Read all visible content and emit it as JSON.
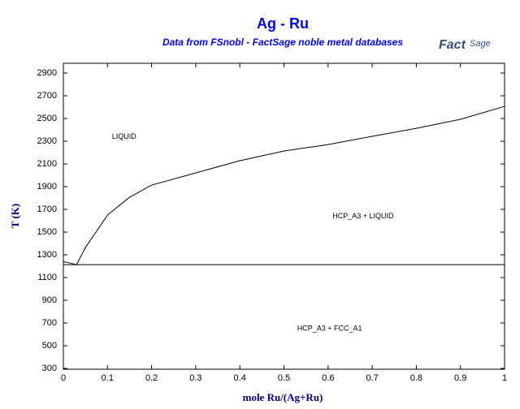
{
  "chart_data": {
    "type": "line",
    "title": "Ag - Ru",
    "subtitle": "Data from FSnobl - FactSage noble metal databases",
    "logo": [
      "Fact",
      "Sage"
    ],
    "x_label": "mole Ru/(Ag+Ru)",
    "y_label": "T (K)",
    "xlim": [
      0,
      1
    ],
    "ylim": [
      293,
      2986
    ],
    "xticks": [
      0,
      0.1,
      0.2,
      0.3,
      0.4,
      0.5,
      0.6,
      0.7,
      0.8,
      0.9,
      1
    ],
    "yticks": [
      300,
      500,
      700,
      900,
      1100,
      1300,
      1500,
      1700,
      1900,
      2100,
      2300,
      2500,
      2700,
      2900
    ],
    "series": [
      {
        "color": "#000000",
        "x": [
          0,
          0.03
        ],
        "values": [
          1240,
          1214
        ]
      },
      {
        "color": "#000000",
        "x": [
          0.03,
          0.05,
          0.1,
          0.15,
          0.2,
          0.3,
          0.4,
          0.5,
          0.6,
          0.7,
          0.8,
          0.9,
          1
        ],
        "values": [
          1214,
          1364,
          1650,
          1807,
          1914,
          2021,
          2129,
          2214,
          2271,
          2343,
          2414,
          2493,
          2607
        ]
      },
      {
        "color": "#000000",
        "x": [
          0,
          1
        ],
        "values": [
          1214,
          1214
        ]
      }
    ],
    "annotations": [
      {
        "text": "LIQUID",
        "x": 0.11,
        "y": 2340
      },
      {
        "text": "HCP_A3 + LIQUID",
        "x": 0.61,
        "y": 1640
      },
      {
        "text": "HCP_A3 + FCC_A1",
        "x": 0.53,
        "y": 650
      }
    ]
  }
}
